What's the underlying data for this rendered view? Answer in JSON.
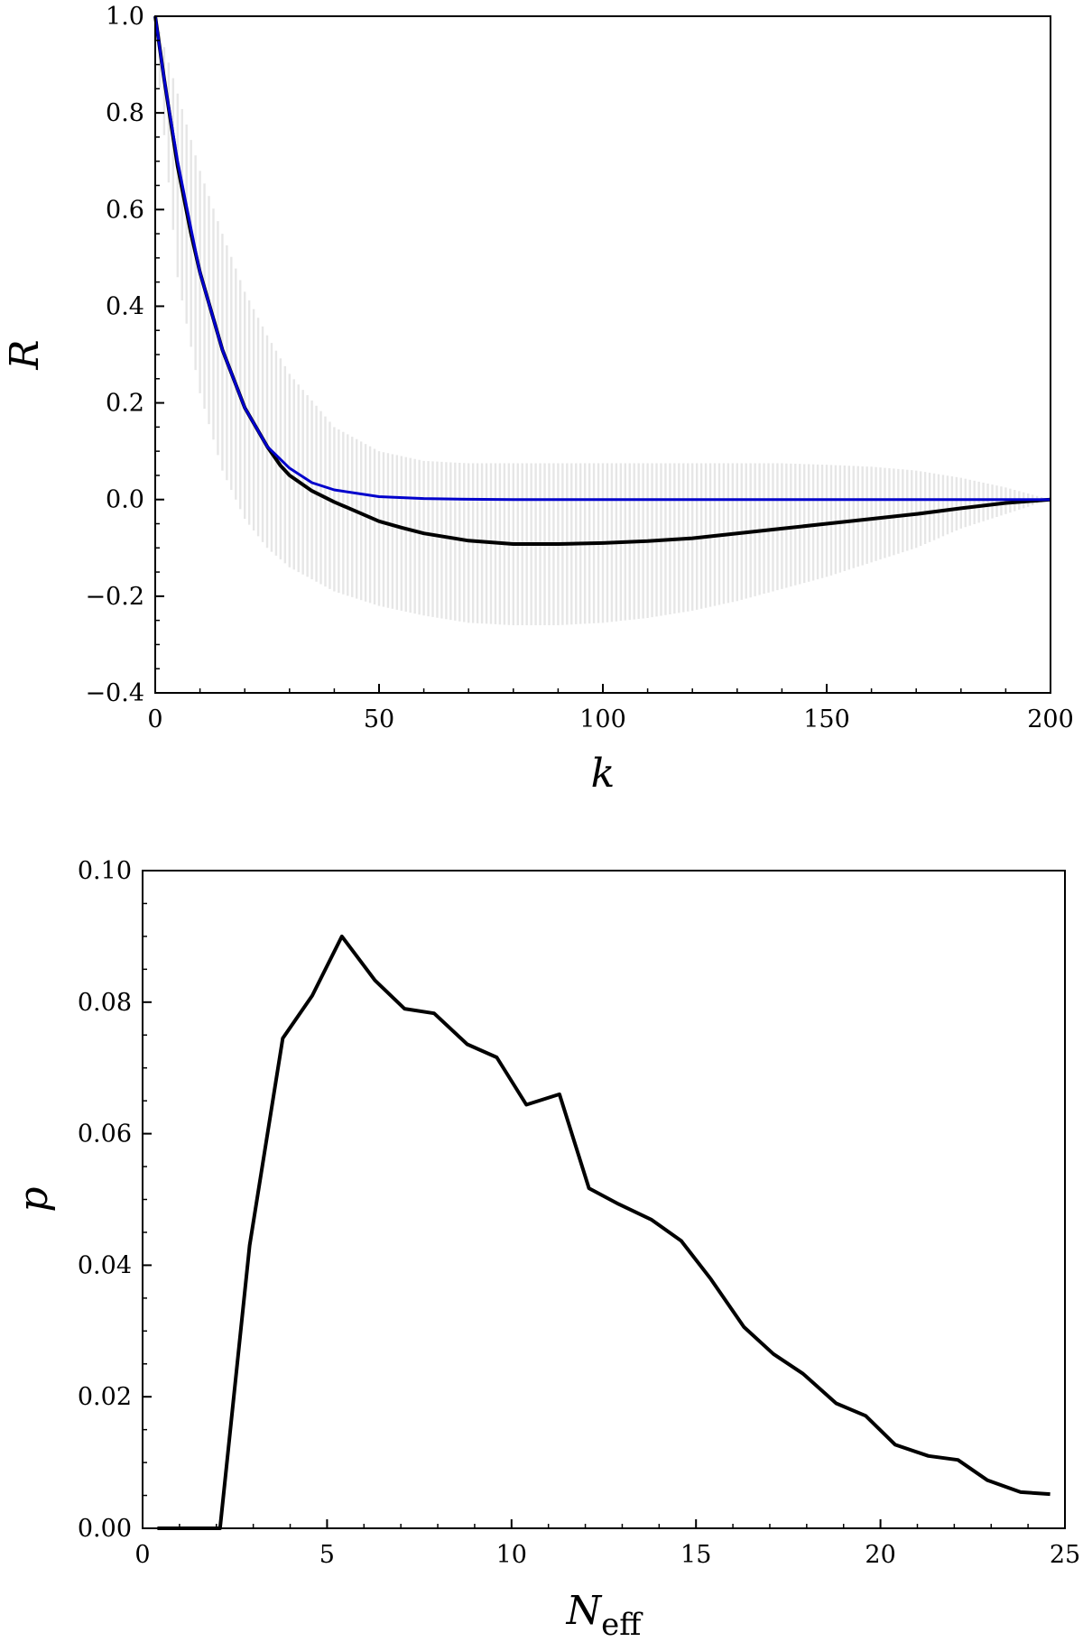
{
  "chart_data": [
    {
      "type": "line",
      "xlabel": "k",
      "ylabel": "R",
      "xlim": [
        0,
        200
      ],
      "ylim": [
        -0.4,
        1.0
      ],
      "xticks": [
        "0",
        "50",
        "100",
        "150",
        "200"
      ],
      "yticks": [
        "−0.4",
        "−0.2",
        "0.0",
        "0.2",
        "0.4",
        "0.6",
        "0.8",
        "1.0"
      ],
      "grid": false,
      "colors": {
        "band": "#e6e6e6",
        "mean": "#000000",
        "model": "#0000cc"
      },
      "band": {
        "x": [
          0,
          5,
          10,
          15,
          20,
          25,
          30,
          40,
          50,
          60,
          70,
          80,
          90,
          100,
          110,
          120,
          130,
          140,
          150,
          160,
          170,
          180,
          190,
          200
        ],
        "lower": [
          0.95,
          0.46,
          0.22,
          0.06,
          -0.04,
          -0.1,
          -0.14,
          -0.19,
          -0.22,
          -0.24,
          -0.255,
          -0.26,
          -0.26,
          -0.255,
          -0.245,
          -0.23,
          -0.21,
          -0.185,
          -0.16,
          -0.13,
          -0.1,
          -0.06,
          -0.03,
          0.0
        ],
        "upper": [
          1.0,
          0.84,
          0.68,
          0.55,
          0.43,
          0.34,
          0.26,
          0.15,
          0.1,
          0.08,
          0.075,
          0.075,
          0.075,
          0.075,
          0.075,
          0.075,
          0.075,
          0.075,
          0.072,
          0.068,
          0.06,
          0.045,
          0.025,
          0.0
        ]
      },
      "series": [
        {
          "x": [
            0,
            2,
            5,
            8,
            10,
            15,
            20,
            25,
            28,
            30,
            35,
            40,
            45,
            50,
            55,
            60,
            70,
            80,
            90,
            100,
            110,
            120,
            130,
            140,
            150,
            160,
            170,
            180,
            190,
            200
          ],
          "values": [
            1.0,
            0.87,
            0.69,
            0.55,
            0.47,
            0.31,
            0.19,
            0.11,
            0.07,
            0.05,
            0.018,
            -0.005,
            -0.025,
            -0.045,
            -0.058,
            -0.07,
            -0.085,
            -0.092,
            -0.092,
            -0.09,
            -0.086,
            -0.08,
            -0.07,
            -0.06,
            -0.05,
            -0.04,
            -0.03,
            -0.018,
            -0.007,
            0.0
          ]
        },
        {
          "x": [
            0,
            2,
            5,
            8,
            10,
            15,
            20,
            25,
            30,
            35,
            40,
            50,
            60,
            70,
            80,
            100,
            120,
            150,
            200
          ],
          "values": [
            1.0,
            0.87,
            0.7,
            0.56,
            0.47,
            0.31,
            0.19,
            0.11,
            0.065,
            0.035,
            0.02,
            0.006,
            0.002,
            0.0005,
            0.0,
            0.0,
            0.0,
            0.0,
            0.0
          ]
        }
      ]
    },
    {
      "type": "line",
      "xlabel": "N",
      "xlabel_sub": "eff",
      "ylabel": "p",
      "xlim": [
        0,
        25
      ],
      "ylim": [
        0.0,
        0.1
      ],
      "xticks": [
        "0",
        "5",
        "10",
        "15",
        "20",
        "25"
      ],
      "yticks": [
        "0.00",
        "0.02",
        "0.04",
        "0.06",
        "0.08",
        "0.10"
      ],
      "grid": false,
      "colors": {
        "line": "#000000"
      },
      "series": [
        {
          "x": [
            0.4,
            1.2,
            2.1,
            2.9,
            3.8,
            4.6,
            5.4,
            6.3,
            7.1,
            7.9,
            8.8,
            9.6,
            10.4,
            11.3,
            12.1,
            12.9,
            13.8,
            14.6,
            15.4,
            16.3,
            17.1,
            17.9,
            18.8,
            19.6,
            20.4,
            21.3,
            22.1,
            22.9,
            23.8,
            24.6
          ],
          "values": [
            0.0,
            0.0,
            0.0,
            0.043,
            0.0745,
            0.081,
            0.09,
            0.0833,
            0.079,
            0.0783,
            0.0736,
            0.0716,
            0.0644,
            0.066,
            0.0517,
            0.0493,
            0.0469,
            0.0437,
            0.0379,
            0.0306,
            0.0265,
            0.0235,
            0.019,
            0.0171,
            0.0127,
            0.011,
            0.0104,
            0.0073,
            0.0055,
            0.0052
          ]
        }
      ]
    }
  ]
}
